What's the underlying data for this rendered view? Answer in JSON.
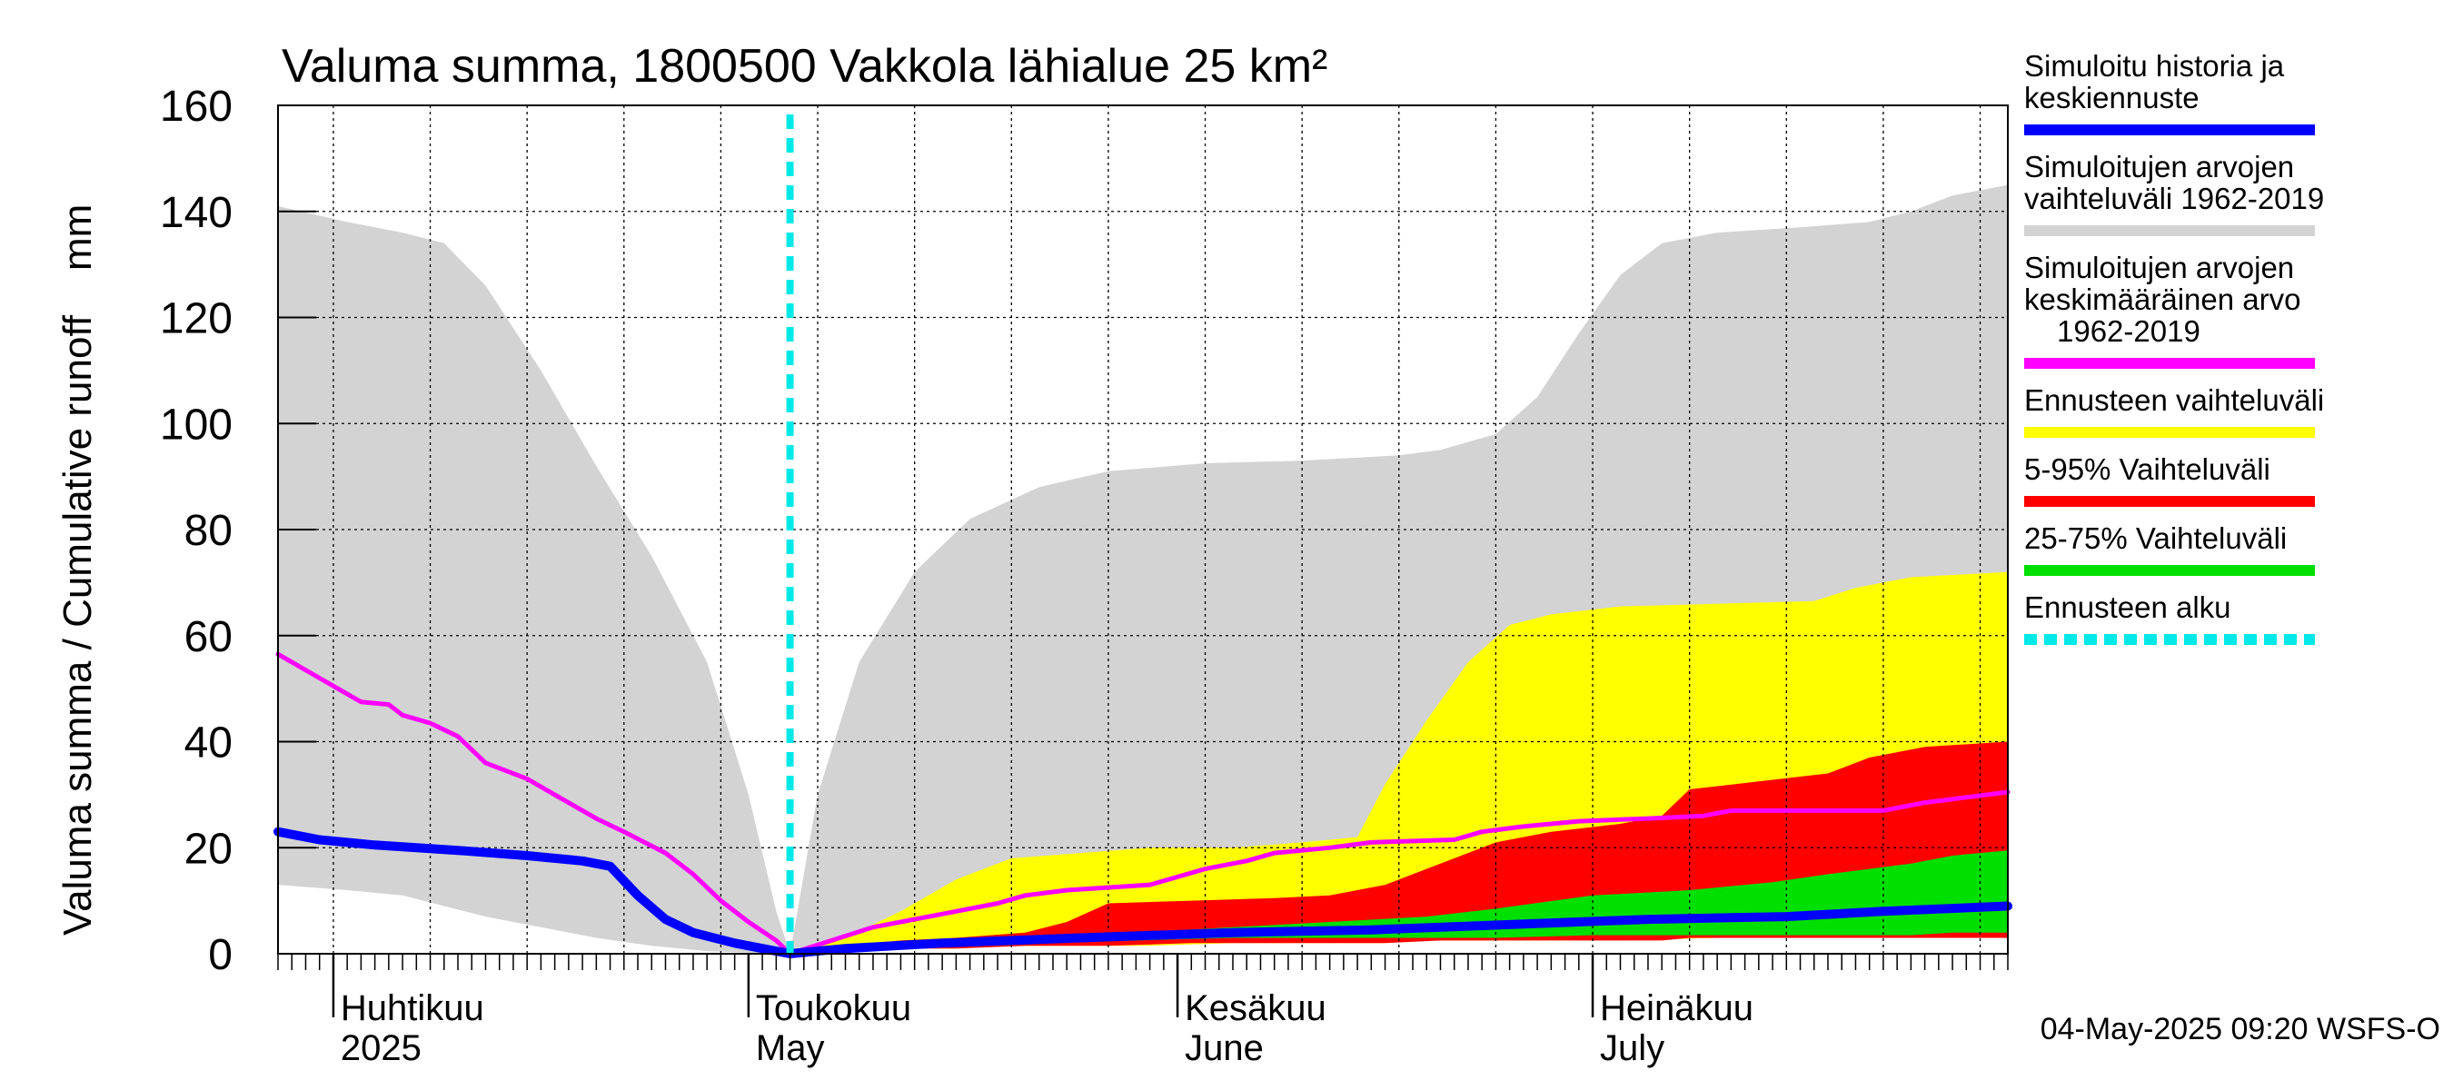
{
  "chart_data": {
    "type": "area",
    "title": "Valuma summa, 1800500 Vakkola lähialue 25 km²",
    "ylabel": "Valuma summa / Cumulative runoff    mm",
    "ylim": [
      0,
      160
    ],
    "yticks": [
      0,
      20,
      40,
      60,
      80,
      100,
      120,
      140,
      160
    ],
    "xlim": [
      "2025-03-28",
      "2025-07-31"
    ],
    "grid": true,
    "legend_position": "right",
    "month_labels": [
      {
        "date": "2025-04-01",
        "fi": "Huhtikuu",
        "en": "2025"
      },
      {
        "date": "2025-05-01",
        "fi": "Toukokuu",
        "en": "May"
      },
      {
        "date": "2025-06-01",
        "fi": "Kesäkuu",
        "en": "June"
      },
      {
        "date": "2025-07-01",
        "fi": "Heinäkuu",
        "en": "July"
      }
    ],
    "forecast_start": "2025-05-04",
    "timestamp": "04-May-2025 09:20 WSFS-O",
    "colors": {
      "historical_range": "#d3d3d3",
      "forecast_range": "#ffff00",
      "p5_95": "#ff0000",
      "p25_75": "#00e000",
      "sim_mean": "#ff00ff",
      "sim_history": "#0000ff",
      "forecast_start": "#00e8e8"
    },
    "series": [
      {
        "name": "Simuloitujen arvojen vaihteluväli 1962-2019",
        "kind": "band",
        "points": [
          [
            "2025-03-28",
            13,
            141
          ],
          [
            "2025-04-02",
            12,
            138
          ],
          [
            "2025-04-06",
            11,
            136
          ],
          [
            "2025-04-09",
            9,
            134
          ],
          [
            "2025-04-12",
            7,
            126
          ],
          [
            "2025-04-16",
            5,
            110
          ],
          [
            "2025-04-20",
            3,
            92
          ],
          [
            "2025-04-24",
            1.5,
            75
          ],
          [
            "2025-04-28",
            0.5,
            55
          ],
          [
            "2025-05-01",
            0.2,
            30
          ],
          [
            "2025-05-03",
            0,
            8
          ],
          [
            "2025-05-04",
            0,
            0
          ],
          [
            "2025-05-06",
            0.5,
            30
          ],
          [
            "2025-05-09",
            1,
            55
          ],
          [
            "2025-05-13",
            1.5,
            72
          ],
          [
            "2025-05-17",
            2,
            82
          ],
          [
            "2025-05-22",
            2,
            88
          ],
          [
            "2025-05-27",
            2,
            91
          ],
          [
            "2025-06-03",
            2,
            92.5
          ],
          [
            "2025-06-10",
            2.5,
            93
          ],
          [
            "2025-06-17",
            2.5,
            94
          ],
          [
            "2025-06-20",
            3,
            95
          ],
          [
            "2025-06-24",
            3,
            98
          ],
          [
            "2025-06-27",
            3,
            105
          ],
          [
            "2025-06-30",
            3,
            117
          ],
          [
            "2025-07-03",
            3,
            128
          ],
          [
            "2025-07-06",
            3,
            134
          ],
          [
            "2025-07-10",
            3,
            136
          ],
          [
            "2025-07-16",
            3,
            137
          ],
          [
            "2025-07-21",
            3,
            138
          ],
          [
            "2025-07-24",
            3,
            140
          ],
          [
            "2025-07-27",
            3,
            143
          ],
          [
            "2025-07-31",
            3,
            145
          ]
        ]
      },
      {
        "name": "Ennusteen vaihteluväli",
        "kind": "band",
        "points": [
          [
            "2025-05-04",
            0,
            0
          ],
          [
            "2025-05-08",
            0.5,
            3
          ],
          [
            "2025-05-12",
            1,
            8
          ],
          [
            "2025-05-16",
            1,
            14
          ],
          [
            "2025-05-20",
            1.5,
            18
          ],
          [
            "2025-05-25",
            1.5,
            19
          ],
          [
            "2025-05-30",
            1.5,
            20
          ],
          [
            "2025-06-05",
            2,
            20
          ],
          [
            "2025-06-10",
            2,
            21
          ],
          [
            "2025-06-14",
            2,
            22
          ],
          [
            "2025-06-16",
            2,
            32
          ],
          [
            "2025-06-19",
            2.5,
            44
          ],
          [
            "2025-06-22",
            2.5,
            55
          ],
          [
            "2025-06-25",
            2.5,
            62
          ],
          [
            "2025-06-28",
            2.5,
            64
          ],
          [
            "2025-07-03",
            2.5,
            65.5
          ],
          [
            "2025-07-10",
            3,
            66
          ],
          [
            "2025-07-17",
            3,
            66.5
          ],
          [
            "2025-07-20",
            3,
            69
          ],
          [
            "2025-07-24",
            3,
            71
          ],
          [
            "2025-07-31",
            3,
            72
          ]
        ]
      },
      {
        "name": "5-95% Vaihteluväli",
        "kind": "band",
        "points": [
          [
            "2025-05-04",
            0,
            0
          ],
          [
            "2025-05-08",
            0.5,
            1.5
          ],
          [
            "2025-05-12",
            1,
            2.5
          ],
          [
            "2025-05-16",
            1,
            3
          ],
          [
            "2025-05-21",
            1.5,
            4
          ],
          [
            "2025-05-24",
            1.5,
            6
          ],
          [
            "2025-05-27",
            1.5,
            9.5
          ],
          [
            "2025-06-02",
            2,
            10
          ],
          [
            "2025-06-08",
            2,
            10.5
          ],
          [
            "2025-06-12",
            2,
            11
          ],
          [
            "2025-06-16",
            2,
            13
          ],
          [
            "2025-06-20",
            2.5,
            17
          ],
          [
            "2025-06-24",
            2.5,
            21
          ],
          [
            "2025-06-28",
            2.5,
            23
          ],
          [
            "2025-07-03",
            2.5,
            24.5
          ],
          [
            "2025-07-06",
            2.5,
            26
          ],
          [
            "2025-07-08",
            3,
            31
          ],
          [
            "2025-07-13",
            3,
            32.5
          ],
          [
            "2025-07-18",
            3,
            34
          ],
          [
            "2025-07-21",
            3,
            37
          ],
          [
            "2025-07-25",
            3,
            39
          ],
          [
            "2025-07-31",
            3,
            40
          ]
        ]
      },
      {
        "name": "25-75% Vaihteluväli",
        "kind": "band",
        "points": [
          [
            "2025-05-04",
            0,
            0
          ],
          [
            "2025-05-10",
            1,
            1.5
          ],
          [
            "2025-05-16",
            1.5,
            2.5
          ],
          [
            "2025-05-22",
            2,
            3
          ],
          [
            "2025-05-29",
            2.5,
            4
          ],
          [
            "2025-06-05",
            3,
            5
          ],
          [
            "2025-06-12",
            3,
            6
          ],
          [
            "2025-06-19",
            3,
            7
          ],
          [
            "2025-06-24",
            3,
            8.5
          ],
          [
            "2025-07-01",
            3.5,
            11
          ],
          [
            "2025-07-08",
            3.5,
            12
          ],
          [
            "2025-07-14",
            3.5,
            13.5
          ],
          [
            "2025-07-18",
            3.5,
            15
          ],
          [
            "2025-07-24",
            3.5,
            17
          ],
          [
            "2025-07-27",
            4,
            18.5
          ],
          [
            "2025-07-31",
            4,
            19.5
          ]
        ]
      },
      {
        "name": "Simuloitujen arvojen keskimääräinen arvo 1962-2019",
        "kind": "line",
        "points": [
          [
            "2025-03-28",
            56.5
          ],
          [
            "2025-03-31",
            52
          ],
          [
            "2025-04-02",
            49
          ],
          [
            "2025-04-03",
            47.5
          ],
          [
            "2025-04-05",
            47
          ],
          [
            "2025-04-06",
            45
          ],
          [
            "2025-04-08",
            43.5
          ],
          [
            "2025-04-10",
            41
          ],
          [
            "2025-04-12",
            36
          ],
          [
            "2025-04-15",
            33
          ],
          [
            "2025-04-17",
            30
          ],
          [
            "2025-04-20",
            25.5
          ],
          [
            "2025-04-22",
            23
          ],
          [
            "2025-04-25",
            19
          ],
          [
            "2025-04-27",
            15
          ],
          [
            "2025-04-29",
            10
          ],
          [
            "2025-05-01",
            6
          ],
          [
            "2025-05-03",
            2.5
          ],
          [
            "2025-05-04",
            0
          ],
          [
            "2025-05-07",
            2.5
          ],
          [
            "2025-05-10",
            5
          ],
          [
            "2025-05-13",
            6.5
          ],
          [
            "2025-05-16",
            8
          ],
          [
            "2025-05-19",
            9.5
          ],
          [
            "2025-05-21",
            11
          ],
          [
            "2025-05-24",
            12
          ],
          [
            "2025-05-30",
            13
          ],
          [
            "2025-06-01",
            14.5
          ],
          [
            "2025-06-03",
            16
          ],
          [
            "2025-06-06",
            17.5
          ],
          [
            "2025-06-08",
            19
          ],
          [
            "2025-06-12",
            20
          ],
          [
            "2025-06-15",
            21
          ],
          [
            "2025-06-21",
            21.5
          ],
          [
            "2025-06-23",
            23
          ],
          [
            "2025-06-26",
            24
          ],
          [
            "2025-06-30",
            25
          ],
          [
            "2025-07-05",
            25.5
          ],
          [
            "2025-07-09",
            26
          ],
          [
            "2025-07-11",
            27
          ],
          [
            "2025-07-22",
            27
          ],
          [
            "2025-07-25",
            28.5
          ],
          [
            "2025-07-28",
            29.5
          ],
          [
            "2025-07-31",
            30.5
          ]
        ]
      },
      {
        "name": "Simuloitu historia ja keskiennuste",
        "kind": "line",
        "points": [
          [
            "2025-03-28",
            23
          ],
          [
            "2025-03-31",
            21.5
          ],
          [
            "2025-04-04",
            20.5
          ],
          [
            "2025-04-10",
            19.5
          ],
          [
            "2025-04-15",
            18.5
          ],
          [
            "2025-04-19",
            17.5
          ],
          [
            "2025-04-21",
            16.5
          ],
          [
            "2025-04-23",
            11
          ],
          [
            "2025-04-25",
            6.5
          ],
          [
            "2025-04-27",
            4
          ],
          [
            "2025-04-30",
            2
          ],
          [
            "2025-05-02",
            1
          ],
          [
            "2025-05-04",
            0
          ],
          [
            "2025-05-08",
            1
          ],
          [
            "2025-05-15",
            2
          ],
          [
            "2025-05-25",
            3
          ],
          [
            "2025-06-05",
            4
          ],
          [
            "2025-06-15",
            4.5
          ],
          [
            "2025-06-25",
            5.5
          ],
          [
            "2025-07-05",
            6.5
          ],
          [
            "2025-07-15",
            7
          ],
          [
            "2025-07-22",
            8
          ],
          [
            "2025-07-31",
            9
          ]
        ]
      }
    ],
    "legend": [
      {
        "lines": [
          "Simuloitu historia ja",
          "keskiennuste"
        ],
        "color": "#0000ff",
        "style": "solid"
      },
      {
        "lines": [
          "Simuloitujen arvojen",
          "vaihteluväli 1962-2019"
        ],
        "color": "#d3d3d3",
        "style": "solid"
      },
      {
        "lines": [
          "Simuloitujen arvojen",
          "keskimääräinen arvo",
          "1962-2019"
        ],
        "color": "#ff00ff",
        "style": "solid"
      },
      {
        "lines": [
          "Ennusteen vaihteluväli"
        ],
        "color": "#ffff00",
        "style": "solid"
      },
      {
        "lines": [
          "5-95% Vaihteluväli"
        ],
        "color": "#ff0000",
        "style": "solid"
      },
      {
        "lines": [
          "25-75% Vaihteluväli"
        ],
        "color": "#00e000",
        "style": "solid"
      },
      {
        "lines": [
          "Ennusteen alku"
        ],
        "color": "#00e8e8",
        "style": "dashed"
      }
    ]
  }
}
